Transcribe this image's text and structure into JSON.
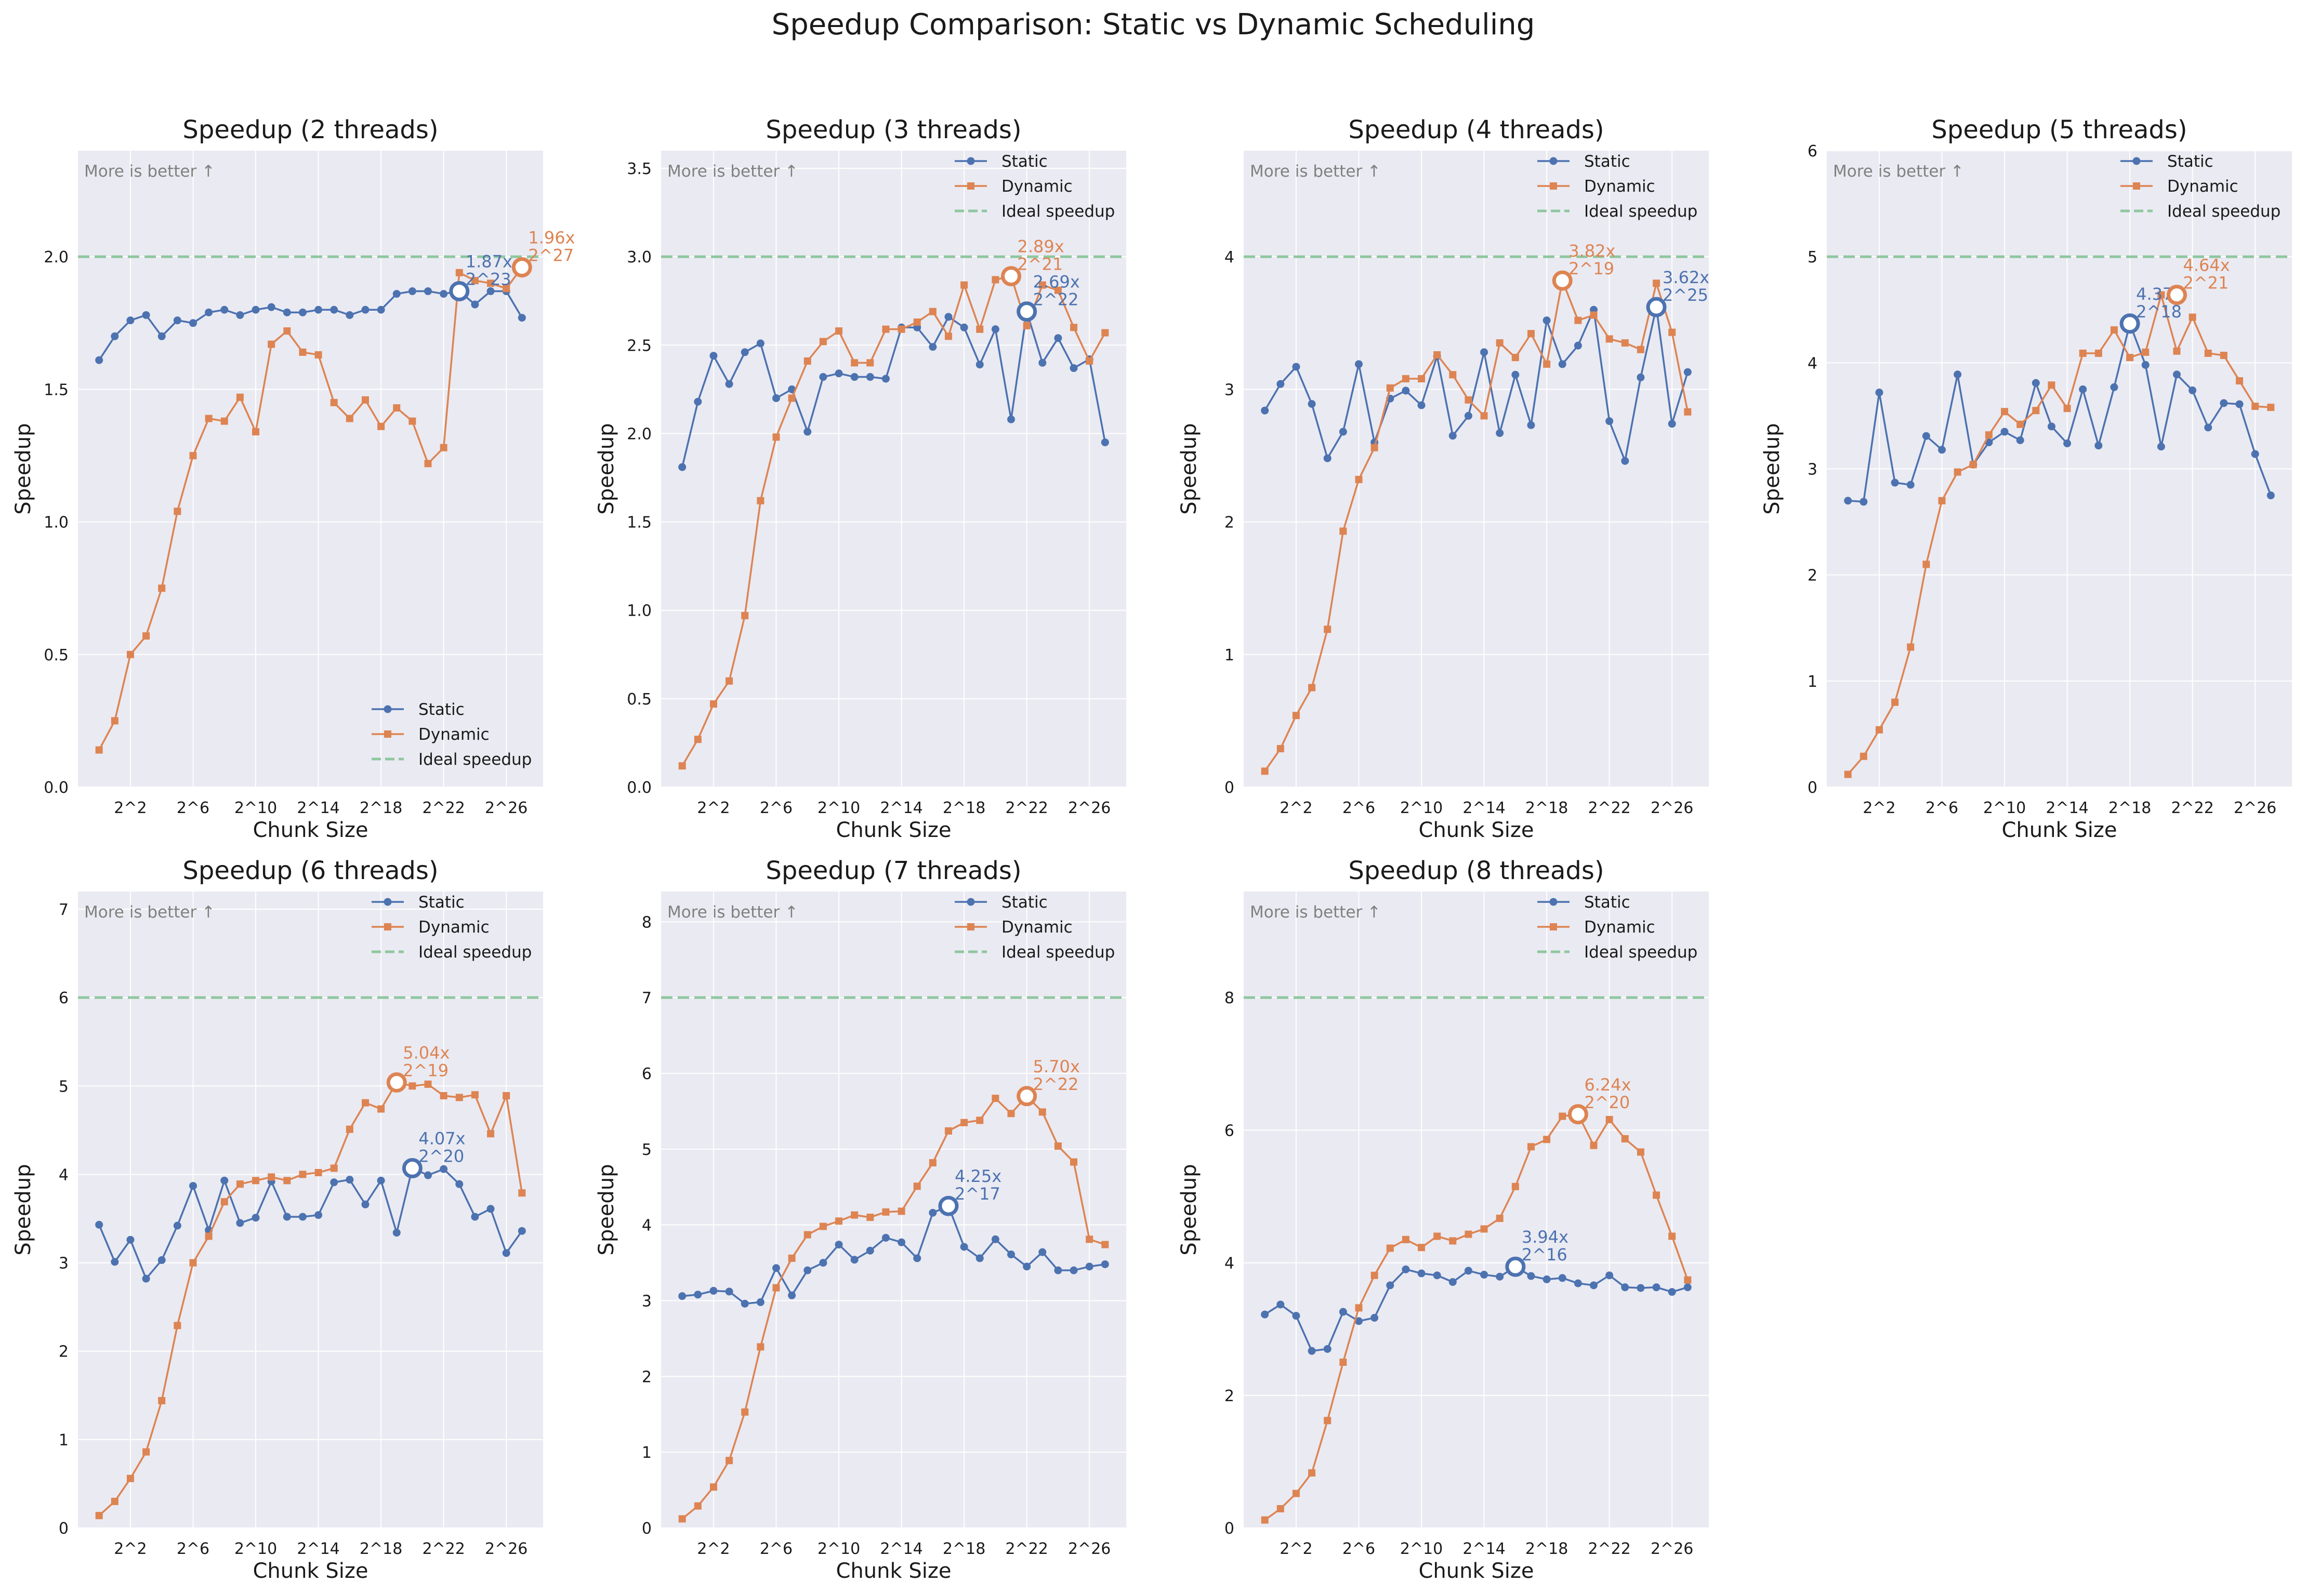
{
  "title": "Speedup Comparison: Static vs Dynamic Scheduling",
  "colors": {
    "static": "#4c72b0",
    "dynamic": "#dd8452",
    "ideal": "#8fc79e",
    "plot_bg": "#eaeaf2",
    "grid": "#ffffff"
  },
  "chart_data": [
    {
      "type": "line",
      "title": "Speedup (2 threads)",
      "xlabel": "Chunk Size",
      "ylabel": "Speedup",
      "note": "More is better ↑",
      "x_exponents": [
        0,
        1,
        2,
        3,
        4,
        5,
        6,
        7,
        8,
        9,
        10,
        11,
        12,
        13,
        14,
        15,
        16,
        17,
        18,
        19,
        20,
        21,
        22,
        23,
        24,
        25,
        26,
        27
      ],
      "xtick_labels": [
        "2^2",
        "2^6",
        "2^10",
        "2^14",
        "2^18",
        "2^22",
        "2^26"
      ],
      "xtick_exponents": [
        2,
        6,
        10,
        14,
        18,
        22,
        26
      ],
      "ylim": [
        0,
        2.4
      ],
      "yticks": [
        0.0,
        0.5,
        1.0,
        1.5,
        2.0
      ],
      "ytick_labels": [
        "0.0",
        "0.5",
        "1.0",
        "1.5",
        "2.0"
      ],
      "legend_position": "lower-right",
      "ideal": 2,
      "series": [
        {
          "name": "Static",
          "values": [
            1.61,
            1.7,
            1.76,
            1.78,
            1.7,
            1.76,
            1.75,
            1.79,
            1.8,
            1.78,
            1.8,
            1.81,
            1.79,
            1.79,
            1.8,
            1.8,
            1.78,
            1.8,
            1.8,
            1.86,
            1.87,
            1.87,
            1.86,
            1.87,
            1.82,
            1.87,
            1.87,
            1.77
          ]
        },
        {
          "name": "Dynamic",
          "values": [
            0.14,
            0.25,
            0.5,
            0.57,
            0.75,
            1.04,
            1.25,
            1.39,
            1.38,
            1.47,
            1.34,
            1.67,
            1.72,
            1.64,
            1.63,
            1.45,
            1.39,
            1.46,
            1.36,
            1.43,
            1.38,
            1.22,
            1.28,
            1.94,
            1.91,
            1.9,
            1.88,
            1.96
          ]
        },
        {
          "name": "Ideal speedup"
        }
      ],
      "annotations": [
        {
          "series": "Static",
          "x_exp": 23,
          "y": 1.87,
          "line1": "1.87x",
          "line2": "2^23"
        },
        {
          "series": "Dynamic",
          "x_exp": 27,
          "y": 1.96,
          "line1": "1.96x",
          "line2": "2^27"
        }
      ]
    },
    {
      "type": "line",
      "title": "Speedup (3 threads)",
      "xlabel": "Chunk Size",
      "ylabel": "Speedup",
      "note": "More is better ↑",
      "x_exponents": [
        0,
        1,
        2,
        3,
        4,
        5,
        6,
        7,
        8,
        9,
        10,
        11,
        12,
        13,
        14,
        15,
        16,
        17,
        18,
        19,
        20,
        21,
        22,
        23,
        24,
        25,
        26,
        27
      ],
      "xtick_labels": [
        "2^2",
        "2^6",
        "2^10",
        "2^14",
        "2^18",
        "2^22",
        "2^26"
      ],
      "xtick_exponents": [
        2,
        6,
        10,
        14,
        18,
        22,
        26
      ],
      "ylim": [
        0,
        3.6
      ],
      "yticks": [
        0.0,
        0.5,
        1.0,
        1.5,
        2.0,
        2.5,
        3.0,
        3.5
      ],
      "ytick_labels": [
        "0.0",
        "0.5",
        "1.0",
        "1.5",
        "2.0",
        "2.5",
        "3.0",
        "3.5"
      ],
      "legend_position": "upper-right",
      "ideal": 3,
      "series": [
        {
          "name": "Static",
          "values": [
            1.81,
            2.18,
            2.44,
            2.28,
            2.46,
            2.51,
            2.2,
            2.25,
            2.01,
            2.32,
            2.34,
            2.32,
            2.32,
            2.31,
            2.6,
            2.6,
            2.49,
            2.66,
            2.6,
            2.39,
            2.59,
            2.08,
            2.69,
            2.4,
            2.54,
            2.37,
            2.42,
            1.95
          ]
        },
        {
          "name": "Dynamic",
          "values": [
            0.12,
            0.27,
            0.47,
            0.6,
            0.97,
            1.62,
            1.98,
            2.2,
            2.41,
            2.52,
            2.58,
            2.4,
            2.4,
            2.59,
            2.59,
            2.63,
            2.69,
            2.55,
            2.84,
            2.59,
            2.87,
            2.89,
            2.61,
            2.84,
            2.81,
            2.6,
            2.41,
            2.57
          ]
        },
        {
          "name": "Ideal speedup"
        }
      ],
      "annotations": [
        {
          "series": "Static",
          "x_exp": 22,
          "y": 2.69,
          "line1": "2.69x",
          "line2": "2^22"
        },
        {
          "series": "Dynamic",
          "x_exp": 21,
          "y": 2.89,
          "line1": "2.89x",
          "line2": "2^21"
        }
      ]
    },
    {
      "type": "line",
      "title": "Speedup (4 threads)",
      "xlabel": "Chunk Size",
      "ylabel": "Speedup",
      "note": "More is better ↑",
      "x_exponents": [
        0,
        1,
        2,
        3,
        4,
        5,
        6,
        7,
        8,
        9,
        10,
        11,
        12,
        13,
        14,
        15,
        16,
        17,
        18,
        19,
        20,
        21,
        22,
        23,
        24,
        25,
        26,
        27
      ],
      "xtick_labels": [
        "2^2",
        "2^6",
        "2^10",
        "2^14",
        "2^18",
        "2^22",
        "2^26"
      ],
      "xtick_exponents": [
        2,
        6,
        10,
        14,
        18,
        22,
        26
      ],
      "ylim": [
        0,
        4.8
      ],
      "yticks": [
        0,
        1,
        2,
        3,
        4
      ],
      "ytick_labels": [
        "0",
        "1",
        "2",
        "3",
        "4"
      ],
      "legend_position": "upper-right",
      "ideal": 4,
      "series": [
        {
          "name": "Static",
          "values": [
            2.84,
            3.04,
            3.17,
            2.89,
            2.48,
            2.68,
            3.19,
            2.6,
            2.93,
            2.99,
            2.88,
            3.25,
            2.65,
            2.8,
            3.28,
            2.67,
            3.11,
            2.73,
            3.52,
            3.19,
            3.33,
            3.6,
            2.76,
            2.46,
            3.09,
            3.62,
            2.74,
            3.13
          ]
        },
        {
          "name": "Dynamic",
          "values": [
            0.12,
            0.29,
            0.54,
            0.75,
            1.19,
            1.93,
            2.32,
            2.56,
            3.01,
            3.08,
            3.08,
            3.26,
            3.11,
            2.92,
            2.8,
            3.35,
            3.24,
            3.42,
            3.19,
            3.82,
            3.52,
            3.56,
            3.38,
            3.35,
            3.3,
            3.8,
            3.43,
            2.83
          ]
        },
        {
          "name": "Ideal speedup"
        }
      ],
      "annotations": [
        {
          "series": "Static",
          "x_exp": 25,
          "y": 3.62,
          "line1": "3.62x",
          "line2": "2^25"
        },
        {
          "series": "Dynamic",
          "x_exp": 19,
          "y": 3.82,
          "line1": "3.82x",
          "line2": "2^19"
        }
      ]
    },
    {
      "type": "line",
      "title": "Speedup (5 threads)",
      "xlabel": "Chunk Size",
      "ylabel": "Speedup",
      "note": "More is better ↑",
      "x_exponents": [
        0,
        1,
        2,
        3,
        4,
        5,
        6,
        7,
        8,
        9,
        10,
        11,
        12,
        13,
        14,
        15,
        16,
        17,
        18,
        19,
        20,
        21,
        22,
        23,
        24,
        25,
        26,
        27
      ],
      "xtick_labels": [
        "2^2",
        "2^6",
        "2^10",
        "2^14",
        "2^18",
        "2^22",
        "2^26"
      ],
      "xtick_exponents": [
        2,
        6,
        10,
        14,
        18,
        22,
        26
      ],
      "ylim": [
        0,
        6
      ],
      "yticks": [
        0,
        1,
        2,
        3,
        4,
        5,
        6
      ],
      "ytick_labels": [
        "0",
        "1",
        "2",
        "3",
        "4",
        "5",
        "6"
      ],
      "legend_position": "upper-right",
      "ideal": 5,
      "series": [
        {
          "name": "Static",
          "values": [
            2.7,
            2.69,
            3.72,
            2.87,
            2.85,
            3.31,
            3.18,
            3.89,
            3.04,
            3.25,
            3.35,
            3.27,
            3.81,
            3.4,
            3.24,
            3.75,
            3.22,
            3.77,
            4.37,
            3.98,
            3.21,
            3.89,
            3.74,
            3.39,
            3.62,
            3.61,
            3.14,
            2.75
          ]
        },
        {
          "name": "Dynamic",
          "values": [
            0.12,
            0.29,
            0.54,
            0.8,
            1.32,
            2.1,
            2.7,
            2.97,
            3.04,
            3.32,
            3.54,
            3.42,
            3.55,
            3.79,
            3.57,
            4.09,
            4.09,
            4.31,
            4.05,
            4.1,
            4.64,
            4.11,
            4.43,
            4.09,
            4.07,
            3.83,
            3.59,
            3.58
          ]
        },
        {
          "name": "Ideal speedup"
        }
      ],
      "annotations": [
        {
          "series": "Static",
          "x_exp": 18,
          "y": 4.37,
          "line1": "4.37x",
          "line2": "2^18"
        },
        {
          "series": "Dynamic",
          "x_exp": 21,
          "y": 4.64,
          "line1": "4.64x",
          "line2": "2^21"
        }
      ]
    },
    {
      "type": "line",
      "title": "Speedup (6 threads)",
      "xlabel": "Chunk Size",
      "ylabel": "Speedup",
      "note": "More is better ↑",
      "x_exponents": [
        0,
        1,
        2,
        3,
        4,
        5,
        6,
        7,
        8,
        9,
        10,
        11,
        12,
        13,
        14,
        15,
        16,
        17,
        18,
        19,
        20,
        21,
        22,
        23,
        24,
        25,
        26,
        27
      ],
      "xtick_labels": [
        "2^2",
        "2^6",
        "2^10",
        "2^14",
        "2^18",
        "2^22",
        "2^26"
      ],
      "xtick_exponents": [
        2,
        6,
        10,
        14,
        18,
        22,
        26
      ],
      "ylim": [
        0,
        7.2
      ],
      "yticks": [
        0,
        1,
        2,
        3,
        4,
        5,
        6,
        7
      ],
      "ytick_labels": [
        "0",
        "1",
        "2",
        "3",
        "4",
        "5",
        "6",
        "7"
      ],
      "legend_position": "upper-right",
      "ideal": 6,
      "series": [
        {
          "name": "Static",
          "values": [
            3.43,
            3.01,
            3.26,
            2.82,
            3.03,
            3.42,
            3.87,
            3.37,
            3.93,
            3.45,
            3.51,
            3.92,
            3.52,
            3.52,
            3.54,
            3.91,
            3.94,
            3.66,
            3.93,
            3.34,
            4.07,
            3.99,
            4.06,
            3.89,
            3.52,
            3.61,
            3.11,
            3.36
          ]
        },
        {
          "name": "Dynamic",
          "values": [
            0.14,
            0.3,
            0.56,
            0.86,
            1.44,
            2.29,
            3.0,
            3.3,
            3.69,
            3.89,
            3.93,
            3.97,
            3.93,
            4.0,
            4.02,
            4.07,
            4.51,
            4.81,
            4.74,
            5.04,
            5.0,
            5.02,
            4.89,
            4.87,
            4.9,
            4.46,
            4.89,
            3.79
          ]
        },
        {
          "name": "Ideal speedup"
        }
      ],
      "annotations": [
        {
          "series": "Static",
          "x_exp": 20,
          "y": 4.07,
          "line1": "4.07x",
          "line2": "2^20"
        },
        {
          "series": "Dynamic",
          "x_exp": 19,
          "y": 5.04,
          "line1": "5.04x",
          "line2": "2^19"
        }
      ]
    },
    {
      "type": "line",
      "title": "Speedup (7 threads)",
      "xlabel": "Chunk Size",
      "ylabel": "Speedup",
      "note": "More is better ↑",
      "x_exponents": [
        0,
        1,
        2,
        3,
        4,
        5,
        6,
        7,
        8,
        9,
        10,
        11,
        12,
        13,
        14,
        15,
        16,
        17,
        18,
        19,
        20,
        21,
        22,
        23,
        24,
        25,
        26,
        27
      ],
      "xtick_labels": [
        "2^2",
        "2^6",
        "2^10",
        "2^14",
        "2^18",
        "2^22",
        "2^26"
      ],
      "xtick_exponents": [
        2,
        6,
        10,
        14,
        18,
        22,
        26
      ],
      "ylim": [
        0,
        8.4
      ],
      "yticks": [
        0,
        1,
        2,
        3,
        4,
        5,
        6,
        7,
        8
      ],
      "ytick_labels": [
        "0",
        "1",
        "2",
        "3",
        "4",
        "5",
        "6",
        "7",
        "8"
      ],
      "legend_position": "upper-right",
      "ideal": 7,
      "series": [
        {
          "name": "Static",
          "values": [
            3.06,
            3.08,
            3.13,
            3.12,
            2.96,
            2.98,
            3.43,
            3.07,
            3.4,
            3.5,
            3.74,
            3.54,
            3.66,
            3.83,
            3.77,
            3.56,
            4.16,
            4.25,
            3.71,
            3.56,
            3.81,
            3.61,
            3.45,
            3.64,
            3.4,
            3.4,
            3.45,
            3.48
          ]
        },
        {
          "name": "Dynamic",
          "values": [
            0.12,
            0.29,
            0.54,
            0.89,
            1.53,
            2.39,
            3.17,
            3.56,
            3.87,
            3.98,
            4.05,
            4.13,
            4.1,
            4.17,
            4.18,
            4.51,
            4.82,
            5.24,
            5.35,
            5.38,
            5.67,
            5.47,
            5.7,
            5.49,
            5.04,
            4.83,
            3.81,
            3.74
          ]
        },
        {
          "name": "Ideal speedup"
        }
      ],
      "annotations": [
        {
          "series": "Static",
          "x_exp": 17,
          "y": 4.25,
          "line1": "4.25x",
          "line2": "2^17"
        },
        {
          "series": "Dynamic",
          "x_exp": 22,
          "y": 5.7,
          "line1": "5.70x",
          "line2": "2^22"
        }
      ]
    },
    {
      "type": "line",
      "title": "Speedup (8 threads)",
      "xlabel": "Chunk Size",
      "ylabel": "Speedup",
      "note": "More is better ↑",
      "x_exponents": [
        0,
        1,
        2,
        3,
        4,
        5,
        6,
        7,
        8,
        9,
        10,
        11,
        12,
        13,
        14,
        15,
        16,
        17,
        18,
        19,
        20,
        21,
        22,
        23,
        24,
        25,
        26,
        27
      ],
      "xtick_labels": [
        "2^2",
        "2^6",
        "2^10",
        "2^14",
        "2^18",
        "2^22",
        "2^26"
      ],
      "xtick_exponents": [
        2,
        6,
        10,
        14,
        18,
        22,
        26
      ],
      "ylim": [
        0,
        9.6
      ],
      "yticks": [
        0,
        2,
        4,
        6,
        8
      ],
      "ytick_labels": [
        "0",
        "2",
        "4",
        "6",
        "8"
      ],
      "legend_position": "upper-right",
      "ideal": 8,
      "series": [
        {
          "name": "Static",
          "values": [
            3.22,
            3.37,
            3.2,
            2.67,
            2.7,
            3.26,
            3.12,
            3.17,
            3.66,
            3.9,
            3.84,
            3.81,
            3.71,
            3.88,
            3.82,
            3.79,
            3.94,
            3.8,
            3.75,
            3.77,
            3.69,
            3.66,
            3.81,
            3.63,
            3.62,
            3.63,
            3.56,
            3.63
          ]
        },
        {
          "name": "Dynamic",
          "values": [
            0.12,
            0.29,
            0.52,
            0.83,
            1.62,
            2.5,
            3.32,
            3.81,
            4.22,
            4.35,
            4.23,
            4.4,
            4.33,
            4.43,
            4.51,
            4.67,
            5.15,
            5.75,
            5.86,
            6.21,
            6.24,
            5.77,
            6.16,
            5.87,
            5.67,
            5.02,
            4.4,
            3.74
          ]
        },
        {
          "name": "Ideal speedup"
        }
      ],
      "annotations": [
        {
          "series": "Static",
          "x_exp": 16,
          "y": 3.94,
          "line1": "3.94x",
          "line2": "2^16"
        },
        {
          "series": "Dynamic",
          "x_exp": 20,
          "y": 6.24,
          "line1": "6.24x",
          "line2": "2^20"
        }
      ]
    }
  ]
}
